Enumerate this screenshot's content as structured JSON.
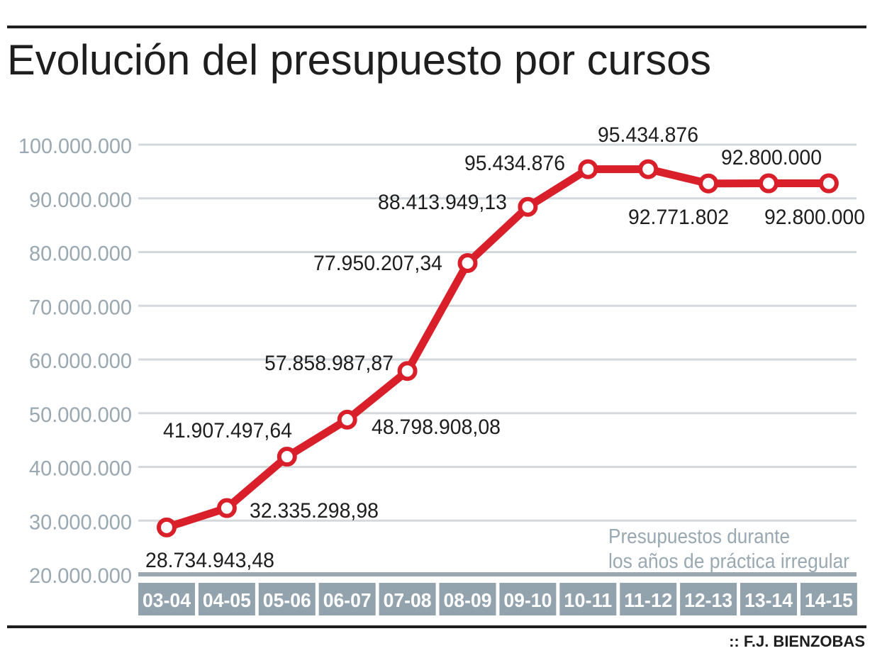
{
  "chart_data": {
    "type": "line",
    "title": "Evolución del presupuesto por cursos",
    "xlabel": "",
    "ylabel": "",
    "ylim": [
      20000000,
      100000000
    ],
    "yticks": [
      100000000,
      90000000,
      80000000,
      70000000,
      60000000,
      50000000,
      40000000,
      30000000,
      20000000
    ],
    "ytick_labels": [
      "100.000.000",
      "90.000.000",
      "80.000.000",
      "70.000.000",
      "60.000.000",
      "50.000.000",
      "40.000.000",
      "30.000.000",
      "20.000.000"
    ],
    "grid": true,
    "categories": [
      "03-04",
      "04-05",
      "05-06",
      "06-07",
      "07-08",
      "08-09",
      "09-10",
      "10-11",
      "11-12",
      "12-13",
      "13-14",
      "14-15"
    ],
    "series": [
      {
        "name": "Presupuesto",
        "color": "#d9202a",
        "values": [
          28734943.48,
          32335298.98,
          41907497.64,
          48798908.08,
          57858987.87,
          77950207.34,
          88413949.13,
          95434876,
          95434876,
          92771802,
          92800000,
          92800000
        ],
        "data_labels": [
          "28.734.943,48",
          "32.335.298,98",
          "41.907.497,64",
          "48.798.908,08",
          "57.858.987,87",
          "77.950.207,34",
          "88.413.949,13",
          "95.434.876",
          "95.434.876",
          "92.771.802",
          "92.800.000",
          "92.800.000"
        ]
      }
    ],
    "annotation": [
      "Presupuestos durante",
      "los años de práctica irregular"
    ],
    "credit": ":: F.J. BIENZOBAS"
  }
}
